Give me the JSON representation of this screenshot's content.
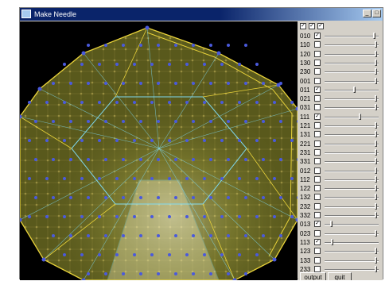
{
  "window": {
    "title": "Make Needle"
  },
  "header_checks": [
    true,
    true,
    true
  ],
  "rows": [
    {
      "label": "010",
      "checked": true,
      "level": 0.93
    },
    {
      "label": "110",
      "checked": false,
      "level": 0.95
    },
    {
      "label": "120",
      "checked": false,
      "level": 0.95
    },
    {
      "label": "130",
      "checked": false,
      "level": 0.95
    },
    {
      "label": "230",
      "checked": false,
      "level": 0.95
    },
    {
      "label": "001",
      "checked": false,
      "level": 0.95
    },
    {
      "label": "011",
      "checked": true,
      "level": 0.55
    },
    {
      "label": "021",
      "checked": false,
      "level": 0.95
    },
    {
      "label": "031",
      "checked": false,
      "level": 0.95
    },
    {
      "label": "111",
      "checked": true,
      "level": 0.65
    },
    {
      "label": "121",
      "checked": false,
      "level": 0.95
    },
    {
      "label": "131",
      "checked": false,
      "level": 0.95
    },
    {
      "label": "221",
      "checked": false,
      "level": 0.95
    },
    {
      "label": "231",
      "checked": false,
      "level": 0.95
    },
    {
      "label": "331",
      "checked": false,
      "level": 0.95
    },
    {
      "label": "012",
      "checked": false,
      "level": 0.95
    },
    {
      "label": "112",
      "checked": false,
      "level": 0.95
    },
    {
      "label": "122",
      "checked": false,
      "level": 0.95
    },
    {
      "label": "132",
      "checked": false,
      "level": 0.95
    },
    {
      "label": "232",
      "checked": false,
      "level": 0.95
    },
    {
      "label": "332",
      "checked": false,
      "level": 0.95
    },
    {
      "label": "013",
      "checked": true,
      "level": 0.1
    },
    {
      "label": "023",
      "checked": false,
      "level": 0.95
    },
    {
      "label": "113",
      "checked": true,
      "level": 0.12
    },
    {
      "label": "123",
      "checked": false,
      "level": 0.95
    },
    {
      "label": "133",
      "checked": false,
      "level": 0.95
    },
    {
      "label": "233",
      "checked": false,
      "level": 0.95
    }
  ],
  "buttons": {
    "output": "output",
    "quit": "quit"
  },
  "colors": {
    "titlebar": "#0a246a",
    "edge_yellow": "#e8d23a",
    "edge_cyan": "#7fd9f0",
    "vertex": "#4a5adc",
    "face_fill": "#6b6b22"
  }
}
